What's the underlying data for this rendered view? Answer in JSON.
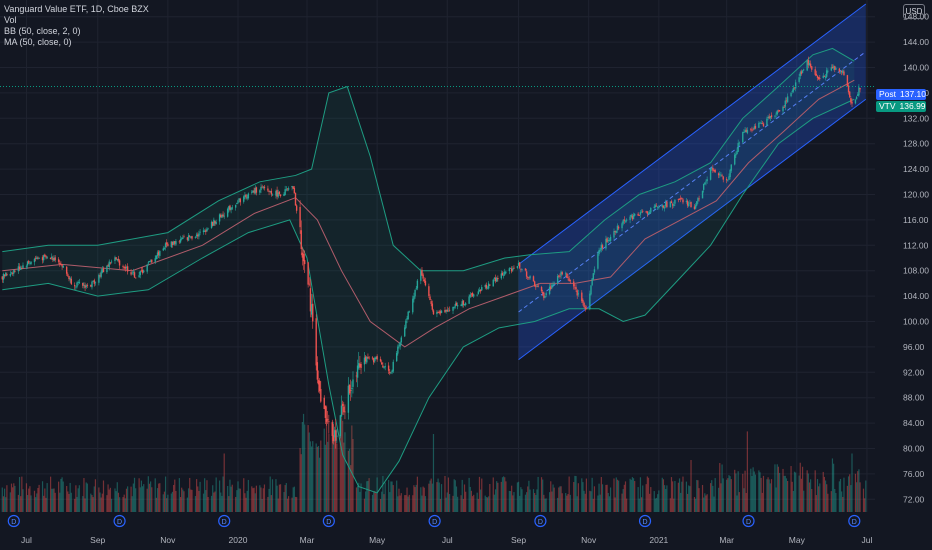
{
  "legend": {
    "title": "Vanguard Value ETF, 1D, Cboe BZX",
    "vol": "Vol",
    "bb": "BB (50, close, 2, 0)",
    "ma": "MA (50, close, 0)"
  },
  "currency": "USD",
  "tags": {
    "post_label": "Post",
    "post_value": "137.10",
    "ticker": "VTV",
    "last_value": "136.99"
  },
  "colors": {
    "background": "#131722",
    "up": "#26a69a",
    "down": "#ef5350",
    "bb_band": "#1e9c82",
    "ma": "#b05c6a",
    "channel": "#2962ff",
    "post": "#2962ff",
    "last": "#089981",
    "dividend": "#2962ff"
  },
  "chart_data": {
    "type": "candlestick",
    "title": "Vanguard Value ETF, 1D, Cboe BZX",
    "ylim": [
      70,
      150
    ],
    "yticks": [
      "148.00",
      "144.00",
      "140.00",
      "136.00",
      "132.00",
      "128.00",
      "124.00",
      "120.00",
      "116.00",
      "112.00",
      "108.00",
      "104.00",
      "100.00",
      "96.00",
      "92.00",
      "88.00",
      "84.00",
      "80.00",
      "76.00",
      "72.00"
    ],
    "xticks": [
      "Jul",
      "Sep",
      "Nov",
      "2020",
      "Mar",
      "May",
      "Jul",
      "Sep",
      "Nov",
      "2021",
      "Mar",
      "May",
      "Jul"
    ],
    "xtick_dates": [
      "2019-07-01",
      "2019-09-01",
      "2019-11-01",
      "2020-01-01",
      "2020-03-01",
      "2020-05-01",
      "2020-07-01",
      "2020-09-01",
      "2020-11-01",
      "2021-01-01",
      "2021-03-01",
      "2021-05-01",
      "2021-07-01"
    ],
    "x_range": [
      "2019-06-08",
      "2021-07-08"
    ],
    "price_path": [
      [
        "2019-06-10",
        107
      ],
      [
        "2019-07-10",
        110
      ],
      [
        "2019-07-28",
        110
      ],
      [
        "2019-08-10",
        106
      ],
      [
        "2019-08-25",
        105.5
      ],
      [
        "2019-09-15",
        110
      ],
      [
        "2019-10-05",
        107
      ],
      [
        "2019-10-30",
        112
      ],
      [
        "2019-12-01",
        114
      ],
      [
        "2020-01-01",
        119
      ],
      [
        "2020-01-20",
        121
      ],
      [
        "2020-02-05",
        120
      ],
      [
        "2020-02-18",
        121
      ],
      [
        "2020-02-27",
        110
      ],
      [
        "2020-03-05",
        102
      ],
      [
        "2020-03-12",
        88
      ],
      [
        "2020-03-23",
        81
      ],
      [
        "2020-04-05",
        88
      ],
      [
        "2020-04-15",
        94
      ],
      [
        "2020-05-01",
        94
      ],
      [
        "2020-05-13",
        92
      ],
      [
        "2020-06-08",
        108
      ],
      [
        "2020-06-20",
        101
      ],
      [
        "2020-07-15",
        103
      ],
      [
        "2020-08-15",
        107
      ],
      [
        "2020-09-01",
        109
      ],
      [
        "2020-09-23",
        104
      ],
      [
        "2020-10-10",
        108
      ],
      [
        "2020-10-30",
        102
      ],
      [
        "2020-11-09",
        111
      ],
      [
        "2020-12-01",
        116
      ],
      [
        "2020-12-31",
        118
      ],
      [
        "2021-01-20",
        119
      ],
      [
        "2021-02-01",
        118
      ],
      [
        "2021-02-15",
        124
      ],
      [
        "2021-03-01",
        122
      ],
      [
        "2021-03-15",
        130
      ],
      [
        "2021-04-01",
        131
      ],
      [
        "2021-04-20",
        134
      ],
      [
        "2021-05-10",
        141
      ],
      [
        "2021-05-20",
        138
      ],
      [
        "2021-06-01",
        140
      ],
      [
        "2021-06-10",
        139.5
      ],
      [
        "2021-06-18",
        134
      ],
      [
        "2021-06-25",
        137
      ]
    ],
    "bollinger_bands": {
      "upper": [
        [
          "2019-06-10",
          111
        ],
        [
          "2019-07-20",
          112
        ],
        [
          "2019-09-01",
          112
        ],
        [
          "2019-11-01",
          114
        ],
        [
          "2019-12-15",
          119
        ],
        [
          "2020-01-20",
          122
        ],
        [
          "2020-02-20",
          123
        ],
        [
          "2020-03-05",
          124
        ],
        [
          "2020-03-20",
          136
        ],
        [
          "2020-04-05",
          137
        ],
        [
          "2020-04-25",
          126
        ],
        [
          "2020-05-15",
          112
        ],
        [
          "2020-06-08",
          108
        ],
        [
          "2020-07-15",
          108
        ],
        [
          "2020-08-20",
          110
        ],
        [
          "2020-09-10",
          110.5
        ],
        [
          "2020-10-15",
          111
        ],
        [
          "2020-11-15",
          116
        ],
        [
          "2020-12-15",
          120
        ],
        [
          "2021-01-15",
          122
        ],
        [
          "2021-02-15",
          125
        ],
        [
          "2021-03-15",
          132
        ],
        [
          "2021-04-15",
          137
        ],
        [
          "2021-05-15",
          142
        ],
        [
          "2021-06-01",
          143
        ],
        [
          "2021-06-20",
          141
        ]
      ],
      "lower": [
        [
          "2019-06-10",
          105
        ],
        [
          "2019-07-20",
          106
        ],
        [
          "2019-09-01",
          104
        ],
        [
          "2019-10-15",
          105
        ],
        [
          "2019-12-01",
          110
        ],
        [
          "2020-01-10",
          114
        ],
        [
          "2020-02-15",
          116
        ],
        [
          "2020-03-01",
          110
        ],
        [
          "2020-03-20",
          90
        ],
        [
          "2020-04-01",
          79
        ],
        [
          "2020-04-15",
          74
        ],
        [
          "2020-05-01",
          73
        ],
        [
          "2020-05-20",
          78
        ],
        [
          "2020-06-15",
          88
        ],
        [
          "2020-07-15",
          96
        ],
        [
          "2020-08-15",
          99
        ],
        [
          "2020-09-15",
          100
        ],
        [
          "2020-10-15",
          102
        ],
        [
          "2020-11-10",
          102
        ],
        [
          "2020-12-01",
          100
        ],
        [
          "2020-12-20",
          101
        ],
        [
          "2021-01-15",
          106
        ],
        [
          "2021-02-15",
          112
        ],
        [
          "2021-03-15",
          120
        ],
        [
          "2021-04-15",
          128
        ],
        [
          "2021-05-15",
          132
        ],
        [
          "2021-06-20",
          135
        ]
      ]
    },
    "moving_average_50": [
      [
        "2019-06-10",
        108
      ],
      [
        "2019-08-01",
        109
      ],
      [
        "2019-10-01",
        108
      ],
      [
        "2019-12-01",
        112
      ],
      [
        "2020-01-15",
        117
      ],
      [
        "2020-02-20",
        119.5
      ],
      [
        "2020-03-10",
        116
      ],
      [
        "2020-03-31",
        108
      ],
      [
        "2020-04-25",
        100
      ],
      [
        "2020-05-25",
        96
      ],
      [
        "2020-06-20",
        99
      ],
      [
        "2020-07-20",
        102
      ],
      [
        "2020-08-20",
        104
      ],
      [
        "2020-09-20",
        106
      ],
      [
        "2020-10-20",
        106
      ],
      [
        "2020-11-20",
        107
      ],
      [
        "2020-12-20",
        113
      ],
      [
        "2021-01-20",
        116
      ],
      [
        "2021-02-20",
        119
      ],
      [
        "2021-03-20",
        125
      ],
      [
        "2021-04-20",
        130
      ],
      [
        "2021-05-20",
        135
      ],
      [
        "2021-06-20",
        138
      ]
    ],
    "regression_channel": {
      "start": "2020-09-01",
      "end": "2021-06-30",
      "upper": [
        109,
        150
      ],
      "lower": [
        94,
        135
      ],
      "mid": [
        101.5,
        142.5
      ]
    },
    "last_price_line": 137,
    "dividend_markers": [
      "2019-06-20",
      "2019-09-20",
      "2019-12-20",
      "2020-03-20",
      "2020-06-20",
      "2020-09-20",
      "2020-12-20",
      "2021-03-20",
      "2021-06-20"
    ],
    "dividend_label": "D",
    "volume_spikes": [
      [
        "2019-12-20",
        0.45
      ],
      [
        "2020-03-13",
        0.55
      ],
      [
        "2020-03-20",
        0.6
      ],
      [
        "2020-06-19",
        0.6
      ],
      [
        "2021-03-19",
        0.62
      ],
      [
        "2021-01-29",
        0.4
      ],
      [
        "2021-06-18",
        0.45
      ]
    ]
  }
}
